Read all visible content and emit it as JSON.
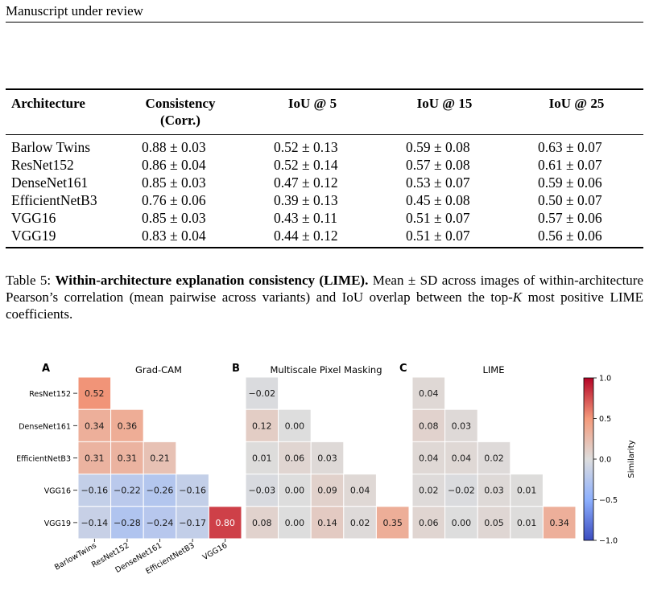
{
  "header": "Manuscript under review",
  "table": {
    "columns": [
      "Architecture",
      "Consistency (Corr.)",
      "IoU @ 5",
      "IoU @ 15",
      "IoU @ 25"
    ],
    "column_lines": [
      [
        "Architecture"
      ],
      [
        "Consistency",
        "(Corr.)"
      ],
      [
        "IoU @ 5"
      ],
      [
        "IoU @ 15"
      ],
      [
        "IoU @ 25"
      ]
    ],
    "rows": [
      [
        "Barlow Twins",
        "0.88 ± 0.03",
        "0.52 ± 0.13",
        "0.59 ± 0.08",
        "0.63 ± 0.07"
      ],
      [
        "ResNet152",
        "0.86 ± 0.04",
        "0.52 ± 0.14",
        "0.57 ± 0.08",
        "0.61 ± 0.07"
      ],
      [
        "DenseNet161",
        "0.85 ± 0.03",
        "0.47 ± 0.12",
        "0.53 ± 0.07",
        "0.59 ± 0.06"
      ],
      [
        "EfficientNetB3",
        "0.76 ± 0.06",
        "0.39 ± 0.13",
        "0.45 ± 0.08",
        "0.50 ± 0.07"
      ],
      [
        "VGG16",
        "0.85 ± 0.03",
        "0.43 ± 0.11",
        "0.51 ± 0.07",
        "0.57 ± 0.06"
      ],
      [
        "VGG19",
        "0.83 ± 0.04",
        "0.44 ± 0.12",
        "0.51 ± 0.07",
        "0.56 ± 0.06"
      ]
    ]
  },
  "caption": {
    "label": "Table 5:",
    "title": "Within-architecture explanation consistency (LIME).",
    "body_1": "Mean ± SD across images of within-architecture Pearson’s correlation (mean pairwise across variants) and IoU overlap between the top-",
    "k": "K",
    "body_2": " most positive LIME coefficients."
  },
  "chart_data": {
    "type": "heatmap",
    "row_labels": [
      "ResNet152",
      "DenseNet161",
      "EfficientNetB3",
      "VGG16",
      "VGG19"
    ],
    "col_labels": [
      "BarlowTwins",
      "ResNet152",
      "DenseNet161",
      "EfficientNetB3",
      "VGG16"
    ],
    "panels": [
      {
        "letter": "A",
        "title": "Grad-CAM",
        "values": [
          [
            0.52
          ],
          [
            0.34,
            0.36
          ],
          [
            0.31,
            0.31,
            0.21
          ],
          [
            -0.16,
            -0.22,
            -0.26,
            -0.16
          ],
          [
            -0.14,
            -0.28,
            -0.24,
            -0.17,
            0.8
          ]
        ]
      },
      {
        "letter": "B",
        "title": "Multiscale Pixel Masking",
        "values": [
          [
            -0.02
          ],
          [
            0.12,
            0.0
          ],
          [
            0.01,
            0.06,
            0.03
          ],
          [
            -0.03,
            0.0,
            0.09,
            0.04
          ],
          [
            0.08,
            0.0,
            0.14,
            0.02,
            0.35
          ]
        ]
      },
      {
        "letter": "C",
        "title": "LIME",
        "values": [
          [
            0.04
          ],
          [
            0.08,
            0.03
          ],
          [
            0.04,
            0.04,
            0.02
          ],
          [
            0.02,
            -0.02,
            0.03,
            0.01
          ],
          [
            0.06,
            0.0,
            0.05,
            0.01,
            0.34
          ]
        ]
      }
    ],
    "colorbar": {
      "label": "Similarity",
      "range": [
        -1.0,
        1.0
      ],
      "ticks": [
        1.0,
        0.5,
        0.0,
        -0.5,
        -1.0
      ],
      "tick_labels": [
        "1.0",
        "0.5",
        "0.0",
        "−0.5",
        "−1.0"
      ],
      "colormap": "coolwarm"
    }
  }
}
